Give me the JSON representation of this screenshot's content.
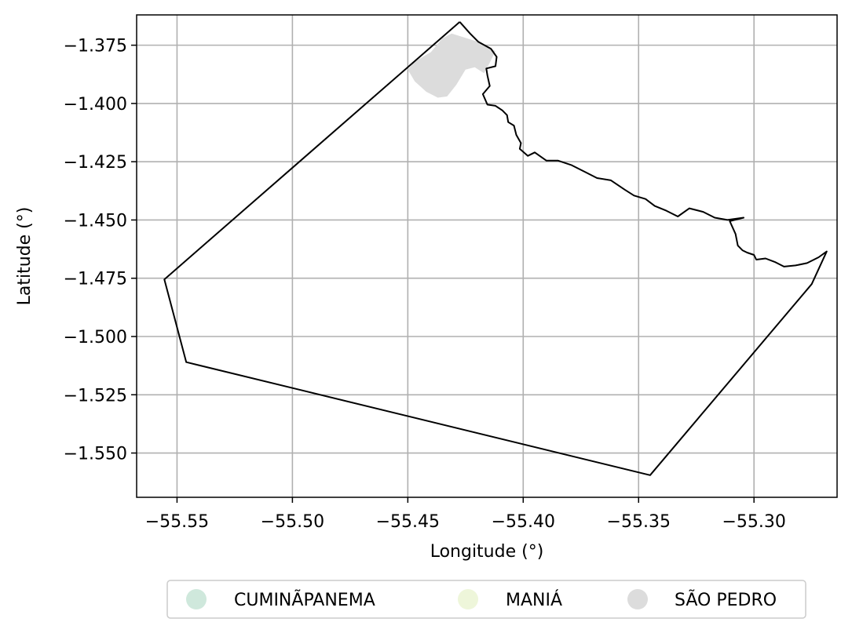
{
  "chart_data": {
    "type": "map",
    "title": "",
    "xlabel": "Longitude (°)",
    "ylabel": "Latitude (°)",
    "xlim": [
      -55.5675,
      -55.264
    ],
    "ylim": [
      -1.569,
      -1.362
    ],
    "xticks": [
      -55.55,
      -55.5,
      -55.45,
      -55.4,
      -55.35,
      -55.3
    ],
    "xtick_labels": [
      "−55.55",
      "−55.50",
      "−55.45",
      "−55.40",
      "−55.35",
      "−55.30"
    ],
    "yticks": [
      -1.375,
      -1.4,
      -1.425,
      -1.45,
      -1.475,
      -1.5,
      -1.525,
      -1.55
    ],
    "ytick_labels": [
      "−1.375",
      "−1.400",
      "−1.425",
      "−1.450",
      "−1.475",
      "−1.500",
      "−1.525",
      "−1.550"
    ],
    "grid": true,
    "legend_position": "bottom-center",
    "legend": [
      {
        "label": "CUMINÃPANEMA",
        "color": "#cfe8dc"
      },
      {
        "label": "MANIÁ",
        "color": "#eef6da"
      },
      {
        "label": "SÃO PEDRO",
        "color": "#dcdcdc"
      }
    ],
    "boundary": [
      [
        -55.4275,
        -1.365
      ],
      [
        -55.423,
        -1.37
      ],
      [
        -55.4195,
        -1.3735
      ],
      [
        -55.414,
        -1.3765
      ],
      [
        -55.4115,
        -1.38
      ],
      [
        -55.412,
        -1.384
      ],
      [
        -55.416,
        -1.385
      ],
      [
        -55.4155,
        -1.388
      ],
      [
        -55.4145,
        -1.3925
      ],
      [
        -55.4175,
        -1.396
      ],
      [
        -55.4155,
        -1.4005
      ],
      [
        -55.412,
        -1.401
      ],
      [
        -55.409,
        -1.403
      ],
      [
        -55.407,
        -1.405
      ],
      [
        -55.4065,
        -1.408
      ],
      [
        -55.404,
        -1.4095
      ],
      [
        -55.403,
        -1.4135
      ],
      [
        -55.401,
        -1.417
      ],
      [
        -55.4015,
        -1.4195
      ],
      [
        -55.398,
        -1.4225
      ],
      [
        -55.395,
        -1.421
      ],
      [
        -55.39,
        -1.4245
      ],
      [
        -55.385,
        -1.4245
      ],
      [
        -55.379,
        -1.4265
      ],
      [
        -55.373,
        -1.4295
      ],
      [
        -55.368,
        -1.432
      ],
      [
        -55.362,
        -1.433
      ],
      [
        -55.356,
        -1.437
      ],
      [
        -55.352,
        -1.4395
      ],
      [
        -55.347,
        -1.441
      ],
      [
        -55.343,
        -1.444
      ],
      [
        -55.338,
        -1.446
      ],
      [
        -55.333,
        -1.4485
      ],
      [
        -55.328,
        -1.445
      ],
      [
        -55.322,
        -1.4465
      ],
      [
        -55.317,
        -1.449
      ],
      [
        -55.3115,
        -1.45
      ],
      [
        -55.3045,
        -1.449
      ],
      [
        -55.3105,
        -1.4505
      ],
      [
        -55.308,
        -1.456
      ],
      [
        -55.307,
        -1.461
      ],
      [
        -55.305,
        -1.463
      ],
      [
        -55.303,
        -1.464
      ],
      [
        -55.3,
        -1.465
      ],
      [
        -55.299,
        -1.467
      ],
      [
        -55.295,
        -1.4665
      ],
      [
        -55.291,
        -1.468
      ],
      [
        -55.287,
        -1.47
      ],
      [
        -55.282,
        -1.4695
      ],
      [
        -55.277,
        -1.4685
      ],
      [
        -55.272,
        -1.466
      ],
      [
        -55.2685,
        -1.4635
      ],
      [
        -55.275,
        -1.4775
      ],
      [
        -55.345,
        -1.5595
      ],
      [
        -55.546,
        -1.511
      ],
      [
        -55.5555,
        -1.4755
      ],
      [
        -55.4275,
        -1.365
      ]
    ],
    "regions": [
      {
        "name": "SÃO PEDRO",
        "color": "#dcdcdc",
        "polygon": [
          [
            -55.44,
            -1.378
          ],
          [
            -55.435,
            -1.372
          ],
          [
            -55.431,
            -1.37
          ],
          [
            -55.418,
            -1.374
          ],
          [
            -55.412,
            -1.3775
          ],
          [
            -55.415,
            -1.3835
          ],
          [
            -55.417,
            -1.387
          ],
          [
            -55.421,
            -1.3845
          ],
          [
            -55.425,
            -1.3855
          ],
          [
            -55.429,
            -1.392
          ],
          [
            -55.433,
            -1.397
          ],
          [
            -55.437,
            -1.3975
          ],
          [
            -55.442,
            -1.395
          ],
          [
            -55.447,
            -1.3905
          ],
          [
            -55.45,
            -1.3855
          ],
          [
            -55.447,
            -1.382
          ]
        ]
      }
    ]
  }
}
